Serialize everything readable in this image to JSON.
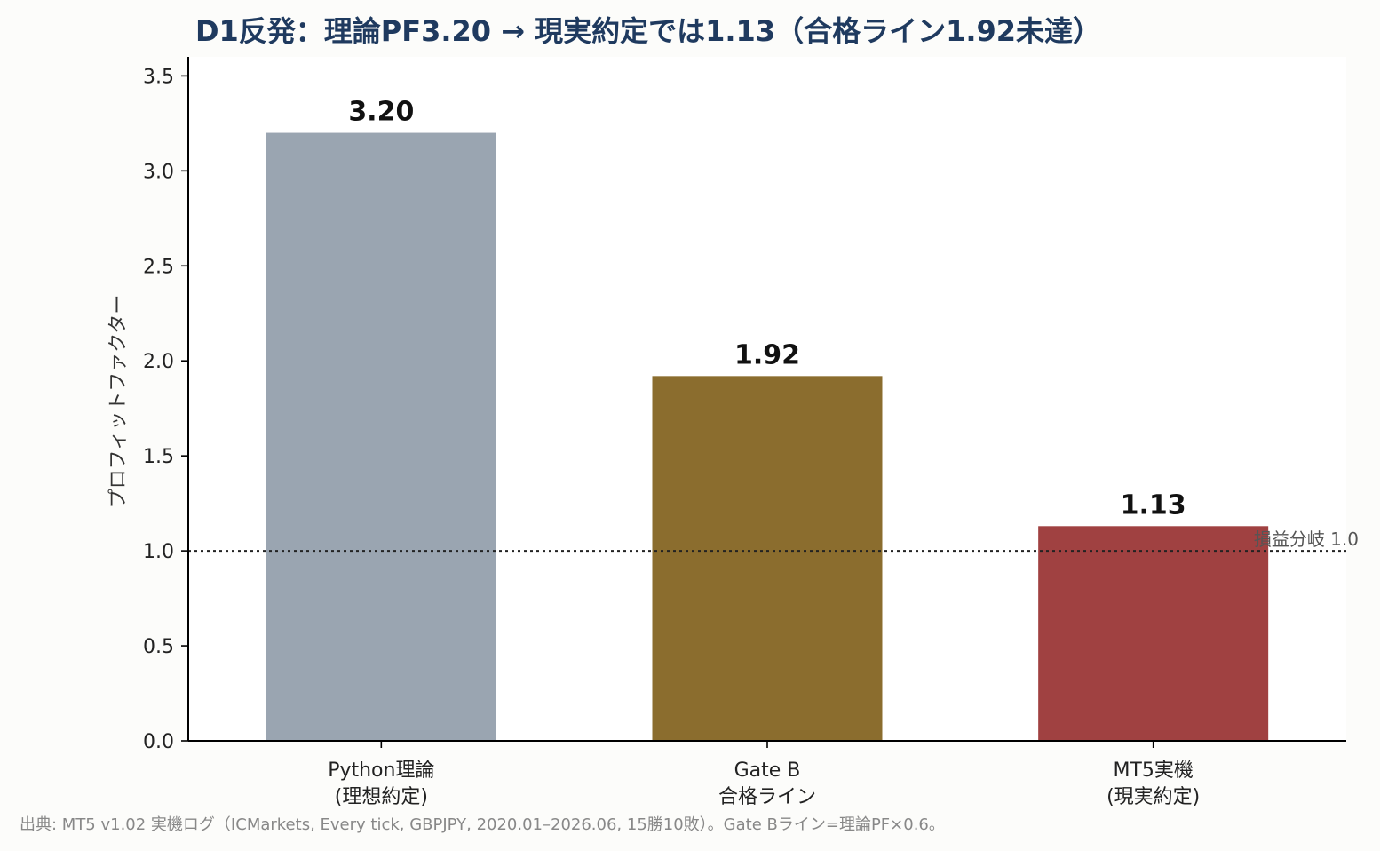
{
  "chart_data": {
    "type": "bar",
    "title": "D1反発：理論PF3.20 → 現実約定では1.13（合格ライン1.92未達）",
    "xlabel": "",
    "ylabel": "プロフィットファクター",
    "ylim": [
      0,
      3.6
    ],
    "yticks": [
      0.0,
      0.5,
      1.0,
      1.5,
      2.0,
      2.5,
      3.0,
      3.5
    ],
    "ytick_labels": [
      "0.0",
      "0.5",
      "1.0",
      "1.5",
      "2.0",
      "2.5",
      "3.0",
      "3.5"
    ],
    "categories": [
      [
        "Python理論",
        "(理想約定)"
      ],
      [
        "Gate B",
        "合格ライン"
      ],
      [
        "MT5実機",
        "(現実約定)"
      ]
    ],
    "values": [
      3.2,
      1.92,
      1.13
    ],
    "value_labels": [
      "3.20",
      "1.92",
      "1.13"
    ],
    "colors": [
      "#9aa5b1",
      "#8b6d2e",
      "#a04141"
    ],
    "reference_line": {
      "value": 1.0,
      "label": "損益分岐 1.0",
      "style": "dotted"
    },
    "grid": false,
    "legend": "none"
  },
  "footnote": "出典: MT5 v1.02 実機ログ（ICMarkets, Every tick, GBPJPY, 2020.01–2026.06, 15勝10敗）。Gate Bライン=理論PF×0.6。"
}
